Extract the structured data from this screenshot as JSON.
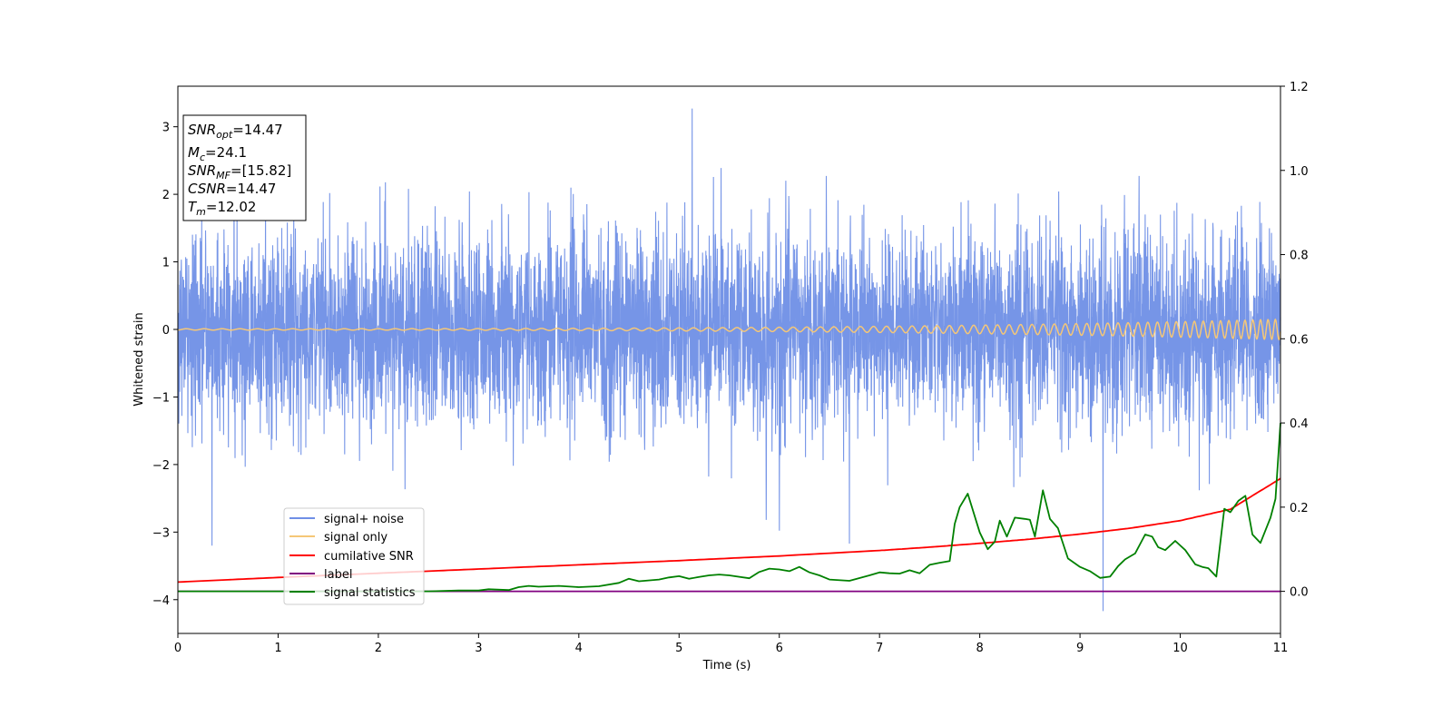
{
  "chart_data": {
    "type": "line",
    "xlabel": "Time (s)",
    "ylabel": "Whitened strain",
    "xlim": [
      0,
      11
    ],
    "ylim": [
      -4.5,
      3.6
    ],
    "y2lim": [
      -0.1,
      1.2
    ],
    "x_ticks": [
      "0",
      "1",
      "2",
      "3",
      "4",
      "5",
      "6",
      "7",
      "8",
      "9",
      "10",
      "11"
    ],
    "y_ticks": [
      "3",
      "2",
      "1",
      "0",
      "−1",
      "−2",
      "−3",
      "−4"
    ],
    "y2_ticks": [
      "1.2",
      "1.0",
      "0.8",
      "0.6",
      "0.4",
      "0.2",
      "0.0"
    ],
    "grid": false,
    "legend_position": "lower-left",
    "info_box": {
      "snr_opt": {
        "base": "SNR",
        "sub": "opt",
        "value": "=14.47"
      },
      "mc": {
        "base": "M",
        "sub": "c",
        "value": "=24.1"
      },
      "snr_mf": {
        "base": "SNR",
        "sub": "MF",
        "value": "=[15.82]"
      },
      "csnr": {
        "base": "CSNR",
        "value": "=14.47"
      },
      "tm": {
        "base": "T",
        "sub": "m",
        "value": "=12.02"
      }
    },
    "series": [
      {
        "name": "signal+ noise",
        "color": "#6f8fe6",
        "axis": "left",
        "note_amplitude": "noise roughly ±1.5, extremes 3.27 at t≈5.13 and −4.17 at t≈9.23"
      },
      {
        "name": "signal only",
        "color": "#f5c777",
        "axis": "left",
        "amplitude_start": 0.01,
        "amplitude_end": 0.15
      },
      {
        "name": "cumilative SNR",
        "color": "#ff0000",
        "axis": "right",
        "x": [
          0,
          1,
          2,
          3,
          4,
          5,
          6,
          7,
          7.5,
          8,
          8.5,
          9,
          9.5,
          10,
          10.5,
          11
        ],
        "y": [
          0.022,
          0.033,
          0.043,
          0.053,
          0.063,
          0.073,
          0.084,
          0.097,
          0.105,
          0.114,
          0.124,
          0.136,
          0.15,
          0.168,
          0.195,
          0.268
        ]
      },
      {
        "name": "label",
        "color": "#800080",
        "axis": "right",
        "x": [
          0,
          11
        ],
        "y": [
          0.0,
          0.0
        ]
      },
      {
        "name": "signal statistics",
        "color": "#008000",
        "axis": "right",
        "x": [
          0,
          2.5,
          2.8,
          3.0,
          3.1,
          3.3,
          3.4,
          3.5,
          3.6,
          3.8,
          4.0,
          4.2,
          4.4,
          4.5,
          4.6,
          4.8,
          4.9,
          5.0,
          5.1,
          5.2,
          5.3,
          5.4,
          5.5,
          5.7,
          5.8,
          5.9,
          6.0,
          6.1,
          6.2,
          6.3,
          6.4,
          6.5,
          6.7,
          6.9,
          7.0,
          7.1,
          7.2,
          7.3,
          7.4,
          7.5,
          7.6,
          7.7,
          7.75,
          7.8,
          7.88,
          8.0,
          8.08,
          8.15,
          8.2,
          8.27,
          8.35,
          8.45,
          8.5,
          8.55,
          8.63,
          8.7,
          8.78,
          8.88,
          9.0,
          9.1,
          9.2,
          9.3,
          9.38,
          9.45,
          9.55,
          9.65,
          9.72,
          9.78,
          9.85,
          9.95,
          10.05,
          10.15,
          10.22,
          10.28,
          10.36,
          10.44,
          10.5,
          10.58,
          10.65,
          10.72,
          10.8,
          10.9,
          10.95,
          11.0
        ],
        "y": [
          0.0,
          0.0,
          0.002,
          0.002,
          0.005,
          0.003,
          0.01,
          0.013,
          0.011,
          0.013,
          0.01,
          0.012,
          0.02,
          0.03,
          0.024,
          0.028,
          0.033,
          0.036,
          0.03,
          0.034,
          0.038,
          0.04,
          0.038,
          0.031,
          0.046,
          0.054,
          0.052,
          0.048,
          0.058,
          0.045,
          0.038,
          0.028,
          0.025,
          0.038,
          0.045,
          0.043,
          0.042,
          0.05,
          0.043,
          0.063,
          0.068,
          0.072,
          0.16,
          0.2,
          0.232,
          0.14,
          0.1,
          0.118,
          0.168,
          0.13,
          0.175,
          0.172,
          0.17,
          0.13,
          0.24,
          0.172,
          0.15,
          0.078,
          0.058,
          0.048,
          0.032,
          0.035,
          0.06,
          0.076,
          0.09,
          0.135,
          0.13,
          0.105,
          0.098,
          0.12,
          0.098,
          0.064,
          0.058,
          0.055,
          0.035,
          0.196,
          0.188,
          0.215,
          0.227,
          0.135,
          0.115,
          0.175,
          0.22,
          0.4
        ]
      }
    ]
  }
}
